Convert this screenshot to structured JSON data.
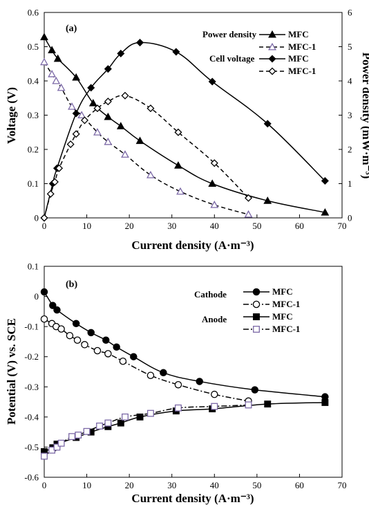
{
  "chart_data": [
    {
      "type": "line",
      "panel_label": "(a)",
      "xlabel": "Current density (A·m⁻³)",
      "ylabel": "Voltage (V)",
      "y2label": "Power density (mW·m⁻³)",
      "xlim": [
        0,
        70
      ],
      "ylim": [
        0,
        0.6
      ],
      "y2lim": [
        0,
        6
      ],
      "x_ticks": [
        "0",
        "10",
        "20",
        "30",
        "40",
        "50",
        "60",
        "70"
      ],
      "y_ticks": [
        "0",
        "0.1",
        "0.2",
        "0.3",
        "0.4",
        "0.5",
        "0.6"
      ],
      "y2_ticks": [
        "0",
        "1",
        "2",
        "3",
        "4",
        "5",
        "6"
      ],
      "grid": false,
      "legend_position": "top-right",
      "legend_groups": [
        "Power density",
        "Cell voltage"
      ],
      "series": [
        {
          "name": "MFC",
          "group": "Power density",
          "axis": "y",
          "color": "#000000",
          "marker": "triangle",
          "filled": true,
          "dash": "solid",
          "x": [
            0,
            1.8,
            3.2,
            7.5,
            11.5,
            15,
            18,
            22.5,
            31.5,
            39.5,
            52.5,
            66
          ],
          "y": [
            0.528,
            0.49,
            0.465,
            0.41,
            0.335,
            0.295,
            0.268,
            0.225,
            0.153,
            0.1,
            0.05,
            0.016
          ]
        },
        {
          "name": "MFC-1",
          "group": "Power density",
          "axis": "y",
          "color": "#7b68a6",
          "marker": "triangle",
          "filled": false,
          "dash": "dashed",
          "x": [
            0,
            1.8,
            2.8,
            4,
            6.5,
            8.8,
            12.5,
            15,
            19,
            25,
            32,
            40,
            48
          ],
          "y": [
            0.455,
            0.42,
            0.4,
            0.38,
            0.325,
            0.3,
            0.25,
            0.222,
            0.185,
            0.125,
            0.077,
            0.038,
            0.01
          ]
        },
        {
          "name": "MFC",
          "group": "Cell voltage",
          "axis": "y2",
          "color": "#000000",
          "marker": "diamond",
          "filled": true,
          "dash": "solid",
          "x": [
            0,
            2,
            3,
            7.5,
            11,
            15,
            18,
            22.5,
            31,
            39.5,
            52.5,
            66
          ],
          "y": [
            0,
            1,
            1.45,
            3.05,
            3.8,
            4.35,
            4.8,
            5.12,
            4.85,
            3.98,
            2.75,
            1.08
          ]
        },
        {
          "name": "MFC-1",
          "group": "Cell voltage",
          "axis": "y2",
          "color": "#000000",
          "marker": "diamond",
          "filled": false,
          "dash": "dashed",
          "x": [
            0,
            1.5,
            2.5,
            3.5,
            6.2,
            7.5,
            9.5,
            12.5,
            15,
            19,
            25,
            31.5,
            40,
            48
          ],
          "y": [
            0,
            0.7,
            1.05,
            1.45,
            2.15,
            2.45,
            2.85,
            3.2,
            3.4,
            3.57,
            3.2,
            2.5,
            1.6,
            0.58
          ]
        }
      ]
    },
    {
      "type": "line",
      "panel_label": "(b)",
      "xlabel": "Current density (A·m⁻³)",
      "ylabel": "Potential (V) vs. SCE",
      "xlim": [
        0,
        70
      ],
      "ylim": [
        -0.6,
        0.1
      ],
      "x_ticks": [
        "0",
        "10",
        "20",
        "30",
        "40",
        "50",
        "60",
        "70"
      ],
      "y_ticks": [
        "0.1",
        "0",
        "-0.1",
        "-0.2",
        "-0.3",
        "-0.4",
        "-0.5",
        "-0.6"
      ],
      "grid": false,
      "legend_position": "top-right",
      "legend_groups": [
        "Cathode",
        "Anode"
      ],
      "series": [
        {
          "name": "MFC",
          "group": "Cathode",
          "color": "#000000",
          "marker": "circle",
          "filled": true,
          "dash": "solid",
          "x": [
            0,
            2,
            3,
            7.5,
            11,
            14.5,
            17,
            21,
            28,
            36.5,
            49.5,
            66
          ],
          "y": [
            0.015,
            -0.03,
            -0.045,
            -0.09,
            -0.12,
            -0.145,
            -0.168,
            -0.2,
            -0.253,
            -0.282,
            -0.31,
            -0.333
          ]
        },
        {
          "name": "MFC-1",
          "group": "Cathode",
          "color": "#000000",
          "marker": "circle",
          "filled": false,
          "dash": "dashdot",
          "x": [
            0,
            1.8,
            2.8,
            4,
            6,
            7.8,
            9.5,
            12.5,
            15,
            18.5,
            25,
            31.5,
            40,
            48
          ],
          "y": [
            -0.075,
            -0.09,
            -0.1,
            -0.108,
            -0.13,
            -0.145,
            -0.16,
            -0.18,
            -0.19,
            -0.215,
            -0.262,
            -0.293,
            -0.325,
            -0.347
          ]
        },
        {
          "name": "MFC",
          "group": "Anode",
          "color": "#000000",
          "marker": "square",
          "filled": true,
          "dash": "solid",
          "x": [
            0,
            2,
            3,
            7.5,
            11,
            15,
            18,
            22.5,
            31,
            39.5,
            52.5,
            66
          ],
          "y": [
            -0.515,
            -0.502,
            -0.49,
            -0.468,
            -0.45,
            -0.432,
            -0.42,
            -0.4,
            -0.38,
            -0.373,
            -0.357,
            -0.352
          ]
        },
        {
          "name": "MFC-1",
          "group": "Anode",
          "color": "#7b68a6",
          "marker": "square",
          "filled": false,
          "dash": "dashdot",
          "x": [
            0,
            1.8,
            3,
            4,
            6.5,
            8,
            10,
            13,
            15,
            19,
            25,
            31.5,
            40,
            48
          ],
          "y": [
            -0.53,
            -0.51,
            -0.5,
            -0.487,
            -0.465,
            -0.46,
            -0.448,
            -0.43,
            -0.42,
            -0.4,
            -0.388,
            -0.37,
            -0.365,
            -0.36
          ]
        }
      ]
    }
  ]
}
